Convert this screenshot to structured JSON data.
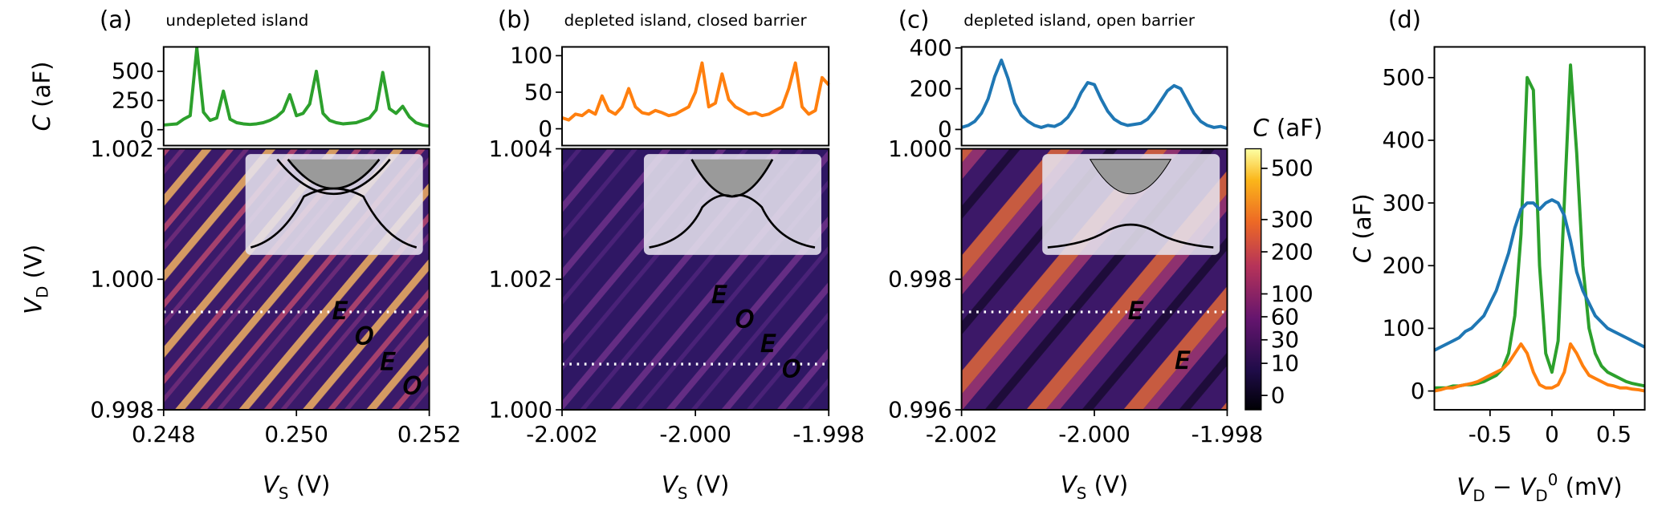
{
  "chart_data": [
    {
      "type": "line",
      "panel_label": "(a)",
      "title": "undepleted island",
      "ylabel": [
        {
          "text": "C",
          "italic": true
        },
        {
          "text": " (aF)"
        }
      ],
      "xlim": [
        0.248,
        0.252
      ],
      "ylim": [
        -136,
        709
      ],
      "yticks": [
        0,
        250,
        500
      ],
      "color": "#2ca02c",
      "x": [
        0.248,
        0.2481,
        0.2482,
        0.2483,
        0.2484,
        0.2485,
        0.2486,
        0.2487,
        0.2488,
        0.2489,
        0.249,
        0.2491,
        0.2492,
        0.2493,
        0.2494,
        0.2495,
        0.2496,
        0.2497,
        0.2498,
        0.2499,
        0.25,
        0.2501,
        0.2502,
        0.2503,
        0.2504,
        0.2505,
        0.2506,
        0.2507,
        0.2508,
        0.2509,
        0.251,
        0.2511,
        0.2512,
        0.2513,
        0.2514,
        0.2515,
        0.2516,
        0.2517,
        0.2518,
        0.2519,
        0.252
      ],
      "values": [
        40,
        45,
        50,
        90,
        120,
        700,
        150,
        80,
        100,
        330,
        90,
        60,
        50,
        45,
        50,
        60,
        80,
        110,
        160,
        300,
        120,
        140,
        220,
        500,
        140,
        80,
        60,
        50,
        55,
        60,
        80,
        100,
        170,
        490,
        180,
        140,
        200,
        110,
        60,
        40,
        30
      ]
    },
    {
      "type": "heatmap",
      "xlabel": [
        {
          "text": "V",
          "italic": true
        },
        {
          "text": "S",
          "shift": "sub"
        },
        {
          "text": " (V)"
        }
      ],
      "ylabel": [
        {
          "text": "V",
          "italic": true
        },
        {
          "text": "D",
          "shift": "sub"
        },
        {
          "text": " (V)"
        }
      ],
      "xlim": [
        0.248,
        0.252
      ],
      "xticks": [
        0.248,
        {
          "value": 0.25,
          "label": "0.250"
        },
        0.252
      ],
      "ylim": [
        0.998,
        1.002
      ],
      "yticks": [
        0.998,
        {
          "value": 1,
          "label": "1.000"
        },
        1.002
      ],
      "hlines": [
        0.9995
      ],
      "annotations": [
        "E",
        "O",
        "E",
        "O"
      ]
    },
    {
      "type": "line",
      "panel_label": "(b)",
      "title": "depleted island, closed barrier",
      "xlim": [
        -2.002,
        -1.998
      ],
      "ylim": [
        -23,
        112
      ],
      "yticks": [
        0,
        50,
        100
      ],
      "color": "#ff7f0e",
      "x": [
        -2.002,
        -2.0019,
        -2.0018,
        -2.0017,
        -2.0016,
        -2.0015,
        -2.0014,
        -2.0013,
        -2.0012,
        -2.0011,
        -2.001,
        -2.0009,
        -2.0008,
        -2.0007,
        -2.0006,
        -2.0005,
        -2.0004,
        -2.0003,
        -2.0002,
        -2.0001,
        -2.0,
        -1.9999,
        -1.9998,
        -1.9997,
        -1.9996,
        -1.9995,
        -1.9994,
        -1.9993,
        -1.9992,
        -1.9991,
        -1.999,
        -1.9989,
        -1.9988,
        -1.9987,
        -1.9986,
        -1.9985,
        -1.9984,
        -1.9983,
        -1.9982,
        -1.9981,
        -1.998
      ],
      "values": [
        15,
        12,
        20,
        18,
        25,
        20,
        45,
        25,
        20,
        30,
        55,
        30,
        22,
        20,
        25,
        22,
        18,
        20,
        25,
        30,
        50,
        90,
        30,
        35,
        75,
        40,
        30,
        25,
        20,
        22,
        18,
        20,
        25,
        30,
        55,
        90,
        30,
        20,
        25,
        70,
        60
      ]
    },
    {
      "type": "heatmap",
      "xlabel": [
        {
          "text": "V",
          "italic": true
        },
        {
          "text": "S",
          "shift": "sub"
        },
        {
          "text": " (V)"
        }
      ],
      "xlim": [
        -2.002,
        -1.998
      ],
      "xticks": [
        -2.002,
        {
          "value": -2,
          "label": "-2.000"
        },
        -1.998
      ],
      "ylim": [
        1,
        1.004
      ],
      "yticks": [
        {
          "value": 1,
          "label": "1.000"
        },
        1.002,
        1.004
      ],
      "hlines": [
        1.0007
      ],
      "annotations": [
        "E",
        "O",
        "E",
        "O"
      ]
    },
    {
      "type": "line",
      "panel_label": "(c)",
      "title": "depleted island, open barrier",
      "xlim": [
        -2.002,
        -1.998
      ],
      "ylim": [
        -79,
        405
      ],
      "yticks": [
        0,
        200,
        400
      ],
      "color": "#1f77b4",
      "x": [
        -2.002,
        -2.0019,
        -2.0018,
        -2.0017,
        -2.0016,
        -2.0015,
        -2.0014,
        -2.0013,
        -2.0012,
        -2.0011,
        -2.001,
        -2.0009,
        -2.0008,
        -2.0007,
        -2.0006,
        -2.0005,
        -2.0004,
        -2.0003,
        -2.0002,
        -2.0001,
        -2.0,
        -1.9999,
        -1.9998,
        -1.9997,
        -1.9996,
        -1.9995,
        -1.9994,
        -1.9993,
        -1.9992,
        -1.9991,
        -1.999,
        -1.9989,
        -1.9988,
        -1.9987,
        -1.9986,
        -1.9985,
        -1.9984,
        -1.9983,
        -1.9982,
        -1.9981,
        -1.998
      ],
      "values": [
        10,
        20,
        40,
        80,
        150,
        260,
        340,
        250,
        130,
        70,
        40,
        20,
        10,
        20,
        15,
        30,
        60,
        110,
        180,
        230,
        220,
        150,
        90,
        50,
        30,
        20,
        25,
        30,
        50,
        90,
        140,
        190,
        215,
        200,
        140,
        80,
        40,
        20,
        10,
        15,
        5
      ]
    },
    {
      "type": "heatmap",
      "xlabel": [
        {
          "text": "V",
          "italic": true
        },
        {
          "text": "S",
          "shift": "sub"
        },
        {
          "text": " (V)"
        }
      ],
      "xlim": [
        -2.002,
        -1.998
      ],
      "xticks": [
        -2.002,
        {
          "value": -2,
          "label": "-2.000"
        },
        -1.998
      ],
      "ylim": [
        0.996,
        1
      ],
      "yticks": [
        0.996,
        0.998,
        {
          "value": 1,
          "label": "1.000"
        }
      ],
      "hlines": [
        0.9975
      ],
      "annotations": [
        "E",
        "E"
      ]
    },
    {
      "type": "colorbar",
      "label": [
        {
          "text": "C",
          "italic": true
        },
        {
          "text": " (aF)"
        }
      ],
      "scale": "sqrt",
      "lim": [
        -2,
        590
      ],
      "ticks": [
        0,
        10,
        30,
        60,
        100,
        200,
        300,
        500
      ]
    },
    {
      "type": "multiline",
      "panel_label": "(d)",
      "xlabel": [
        {
          "text": "V",
          "italic": true
        },
        {
          "text": "D",
          "shift": "sub"
        },
        {
          "text": " − "
        },
        {
          "text": "V",
          "italic": true
        },
        {
          "text": "D",
          "shift": "sub"
        },
        {
          "text": "0",
          "shift": "sup"
        },
        {
          "text": " (mV)"
        }
      ],
      "ylabel": [
        {
          "text": "C",
          "italic": true
        },
        {
          "text": " (aF)"
        }
      ],
      "xlim": [
        -0.95,
        0.75
      ],
      "xticks": [
        -0.5,
        0,
        0.5
      ],
      "ylim": [
        -30,
        549
      ],
      "yticks": [
        0,
        100,
        200,
        300,
        400,
        500
      ],
      "x": [
        -0.95,
        -0.9,
        -0.85,
        -0.8,
        -0.75,
        -0.7,
        -0.65,
        -0.6,
        -0.55,
        -0.5,
        -0.45,
        -0.4,
        -0.35,
        -0.3,
        -0.25,
        -0.2,
        -0.15,
        -0.1,
        -0.05,
        0,
        0.05,
        0.1,
        0.15,
        0.2,
        0.25,
        0.3,
        0.35,
        0.4,
        0.45,
        0.5,
        0.55,
        0.6,
        0.65,
        0.7,
        0.75
      ],
      "series": [
        {
          "color": "#2ca02c",
          "values": [
            5,
            5,
            5,
            8,
            8,
            10,
            10,
            12,
            15,
            20,
            25,
            35,
            60,
            120,
            250,
            500,
            480,
            200,
            60,
            30,
            80,
            300,
            520,
            380,
            200,
            100,
            60,
            40,
            30,
            25,
            20,
            15,
            12,
            10,
            8
          ]
        },
        {
          "color": "#1f77b4",
          "values": [
            65,
            70,
            75,
            80,
            85,
            95,
            100,
            110,
            120,
            140,
            160,
            190,
            220,
            260,
            290,
            300,
            300,
            290,
            300,
            305,
            300,
            280,
            240,
            190,
            160,
            140,
            120,
            110,
            100,
            95,
            90,
            85,
            80,
            75,
            70
          ]
        },
        {
          "color": "#ff7f0e",
          "values": [
            0,
            2,
            5,
            5,
            8,
            10,
            12,
            15,
            20,
            25,
            30,
            35,
            45,
            60,
            75,
            60,
            30,
            10,
            5,
            5,
            10,
            30,
            75,
            60,
            40,
            25,
            20,
            15,
            10,
            8,
            5,
            5,
            3,
            2,
            0
          ]
        }
      ]
    }
  ]
}
